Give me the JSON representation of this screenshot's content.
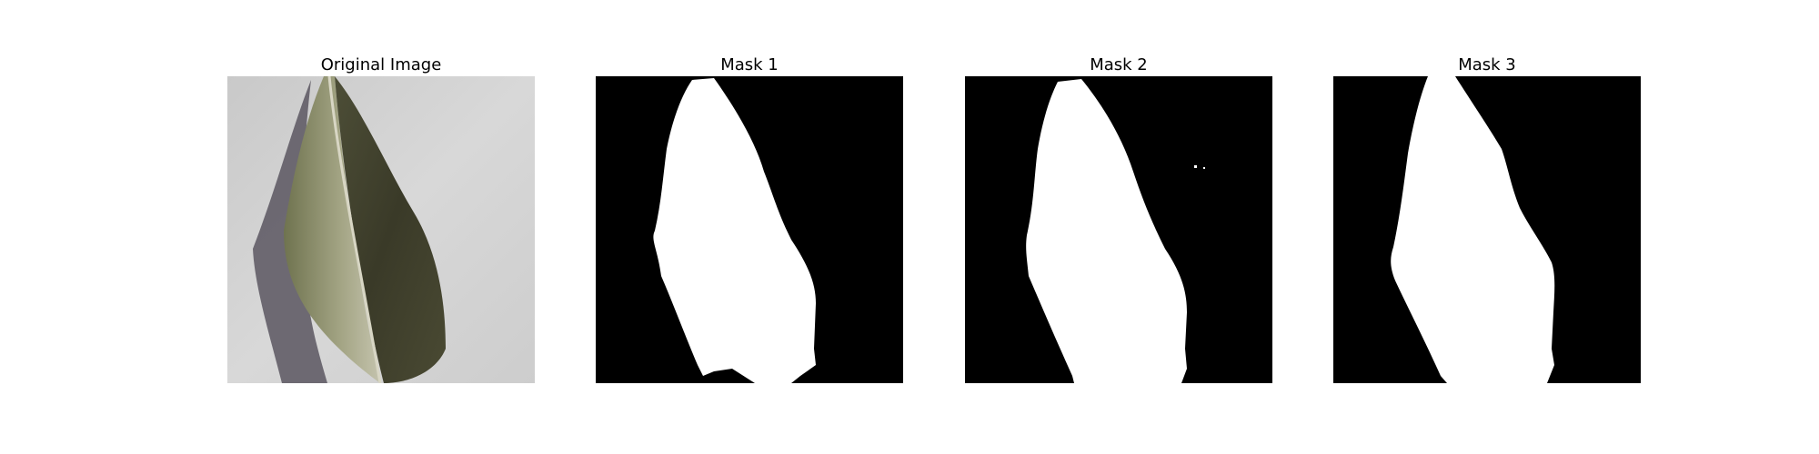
{
  "panels": [
    {
      "title": "Original Image",
      "kind": "photo"
    },
    {
      "title": "Mask 1",
      "kind": "mask"
    },
    {
      "title": "Mask 2",
      "kind": "mask"
    },
    {
      "title": "Mask 3",
      "kind": "mask"
    }
  ],
  "colors": {
    "mask_background": "#000000",
    "mask_foreground": "#ffffff",
    "photo_background": "#cfcfcf",
    "leaf_light_half": "#8c8e6a",
    "leaf_dark_half": "#3f3f2d",
    "leaf_shadow": "#4a4650",
    "midrib": "#d6d4c6"
  }
}
